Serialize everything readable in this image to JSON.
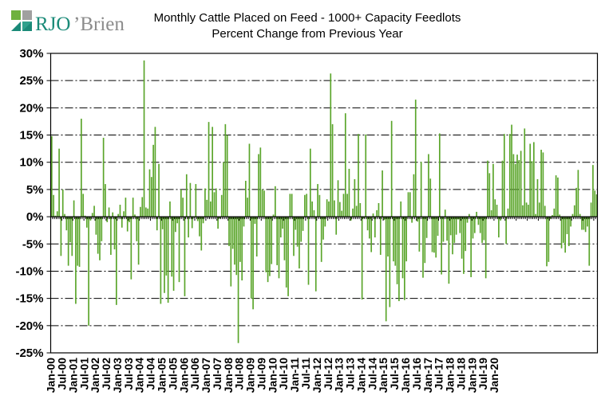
{
  "brand": {
    "name": "RJO'Brien",
    "colors": {
      "green": "#6fb13f",
      "teal": "#1a8a78",
      "grey": "#8c8c8c"
    }
  },
  "chart_data": {
    "type": "bar",
    "title": "Monthly Cattle Placed on Feed - 1000+ Capacity Feedlots",
    "subtitle": "Percent Change from Previous Year",
    "xlabel": "",
    "ylabel": "",
    "ylim": [
      -25,
      30
    ],
    "yticks": [
      30,
      25,
      20,
      15,
      10,
      5,
      0,
      -5,
      -10,
      -15,
      -20,
      -25
    ],
    "ytick_labels": [
      "30%",
      "25%",
      "20%",
      "15%",
      "10%",
      "5%",
      "0%",
      "-5%",
      "-10%",
      "-15%",
      "-20%",
      "-25%"
    ],
    "xtick_labels": [
      "Jan-00",
      "Jul-00",
      "Jan-01",
      "Jul-01",
      "Jan-02",
      "Jul-02",
      "Jan-03",
      "Jul-03",
      "Jan-04",
      "Jul-04",
      "Jan-05",
      "Jul-05",
      "Jan-06",
      "Jul-06",
      "Jan-07",
      "Jul-07",
      "Jan-08",
      "Jul-08",
      "Jan-09",
      "Jul-09",
      "Jan-10",
      "Jul-10",
      "Jan-11",
      "Jul-11",
      "Jan-12",
      "Jul-12",
      "Jan-13",
      "Jul-13",
      "Jan-14",
      "Jul-14",
      "Jan-15",
      "Jul-15",
      "Jan-16",
      "Jul-16",
      "Jan-17",
      "Jul-17",
      "Jan-18",
      "Jul-18",
      "Jan-19",
      "Jul-19",
      "Jan-20"
    ],
    "grid": true,
    "bar_color": "#5aa52a",
    "series": [
      {
        "name": "Percent change from previous year",
        "start": "Jan-00",
        "frequency": "monthly",
        "values": [
          14.8,
          4.0,
          0.2,
          1.0,
          12.5,
          -7.2,
          5.0,
          0.5,
          -2.5,
          -9.0,
          -4.7,
          -7.2,
          3.0,
          -16.0,
          -9.0,
          -9.2,
          18.0,
          4.2,
          0.2,
          -2.0,
          -20.0,
          -0.7,
          0.7,
          2.0,
          -3.3,
          -6.8,
          -8.0,
          -4.5,
          14.5,
          6.0,
          -1.0,
          1.7,
          -7.0,
          0.8,
          -6.0,
          -16.2,
          0.5,
          2.2,
          -2.0,
          1.0,
          3.5,
          -2.7,
          -1.0,
          -11.5,
          3.5,
          0.4,
          -4.5,
          -8.8,
          1.8,
          3.6,
          28.7,
          1.7,
          1.5,
          8.7,
          7.3,
          13.2,
          16.5,
          -2.5,
          9.7,
          -16.0,
          -2.3,
          -14.0,
          -10.8,
          -15.8,
          2.8,
          -11.0,
          -13.6,
          -2.8,
          -1.2,
          -12.0,
          5.0,
          3.5,
          -14.6,
          7.8,
          -3.8,
          6.2,
          -2.1,
          -0.2,
          6.0,
          -0.8,
          -3.6,
          -6.2,
          -1.2,
          5.2,
          3.1,
          17.4,
          2.8,
          16.5,
          4.5,
          5.2,
          -2.2,
          -0.3,
          4.0,
          10.0,
          17.0,
          15.0,
          -5.4,
          -12.8,
          -5.9,
          -8.8,
          -10.7,
          -23.2,
          -8.3,
          -11.7,
          -1.8,
          6.6,
          3.5,
          13.4,
          -15.0,
          -17.0,
          -1.3,
          -7.3,
          11.5,
          12.7,
          5.0,
          4.8,
          -10.2,
          -12.0,
          -10.9,
          -8.7,
          0.4,
          5.6,
          -8.9,
          -11.3,
          -3.8,
          -2.2,
          -8.0,
          -13.0,
          -14.6,
          4.2,
          4.2,
          -7.2,
          -2.4,
          -5.5,
          -9.5,
          -4.6,
          -2.6,
          4.0,
          4.2,
          -12.5,
          12.5,
          2.8,
          1.2,
          -13.7,
          6.0,
          4.0,
          -8.3,
          -4.2,
          -1.8,
          3.2,
          2.8,
          26.3,
          17.0,
          3.0,
          -3.3,
          6.7,
          2.7,
          1.1,
          4.2,
          19.0,
          4.2,
          8.8,
          -0.7,
          1.5,
          6.9,
          2.0,
          15.2,
          2.5,
          -15.2,
          -0.3,
          15.1,
          -2.5,
          -4.0,
          -6.5,
          0.6,
          -3.8,
          1.2,
          2.5,
          -7.0,
          8.5,
          -0.6,
          -19.2,
          -7.3,
          -16.6,
          17.6,
          -8.2,
          -9.0,
          -12.4,
          -15.5,
          2.8,
          -11.3,
          -15.3,
          -8.2,
          4.5,
          4.5,
          -1.1,
          7.8,
          21.5,
          -0.9,
          -6.4,
          10.1,
          -11.2,
          -8.5,
          -3.9,
          11.5,
          7.0,
          -6.5,
          -6.6,
          -7.5,
          -3.5,
          15.3,
          -10.6,
          -4.6,
          1.3,
          -4.4,
          -12.3,
          -3.4,
          -6.9,
          -4.8,
          -3.3,
          -0.5,
          -3.0,
          -7.7,
          -10.5,
          -6.3,
          -1.1,
          0.5,
          -11.1,
          -4.0,
          -3.0,
          0.9,
          -1.5,
          -3.0,
          -4.8,
          -4.3,
          -11.3,
          10.3,
          8.0,
          1.2,
          9.7,
          3.2,
          2.2,
          -3.8,
          -0.7,
          10.3,
          15.2,
          -5.0,
          1.5,
          15.2,
          16.9,
          11.5,
          9.7,
          11.4,
          10.4,
          12.1,
          2.1,
          16.2,
          2.6,
          2.2,
          13.4,
          10.2,
          13.7,
          0.5,
          6.9,
          2.6,
          12.3,
          11.8,
          2.0,
          -9.1,
          -8.3,
          -0.4,
          0.3,
          1.5,
          7.6,
          7.2,
          0.4,
          -5.8,
          -4.8,
          -6.6,
          -3.2,
          -5.4,
          -1.8,
          0.5,
          2.1,
          5.3,
          8.6,
          0.5,
          -2.4,
          -2.4,
          -2.8,
          -1.8,
          -9.0,
          2.6,
          9.5,
          4.8,
          4.1
        ]
      }
    ]
  }
}
